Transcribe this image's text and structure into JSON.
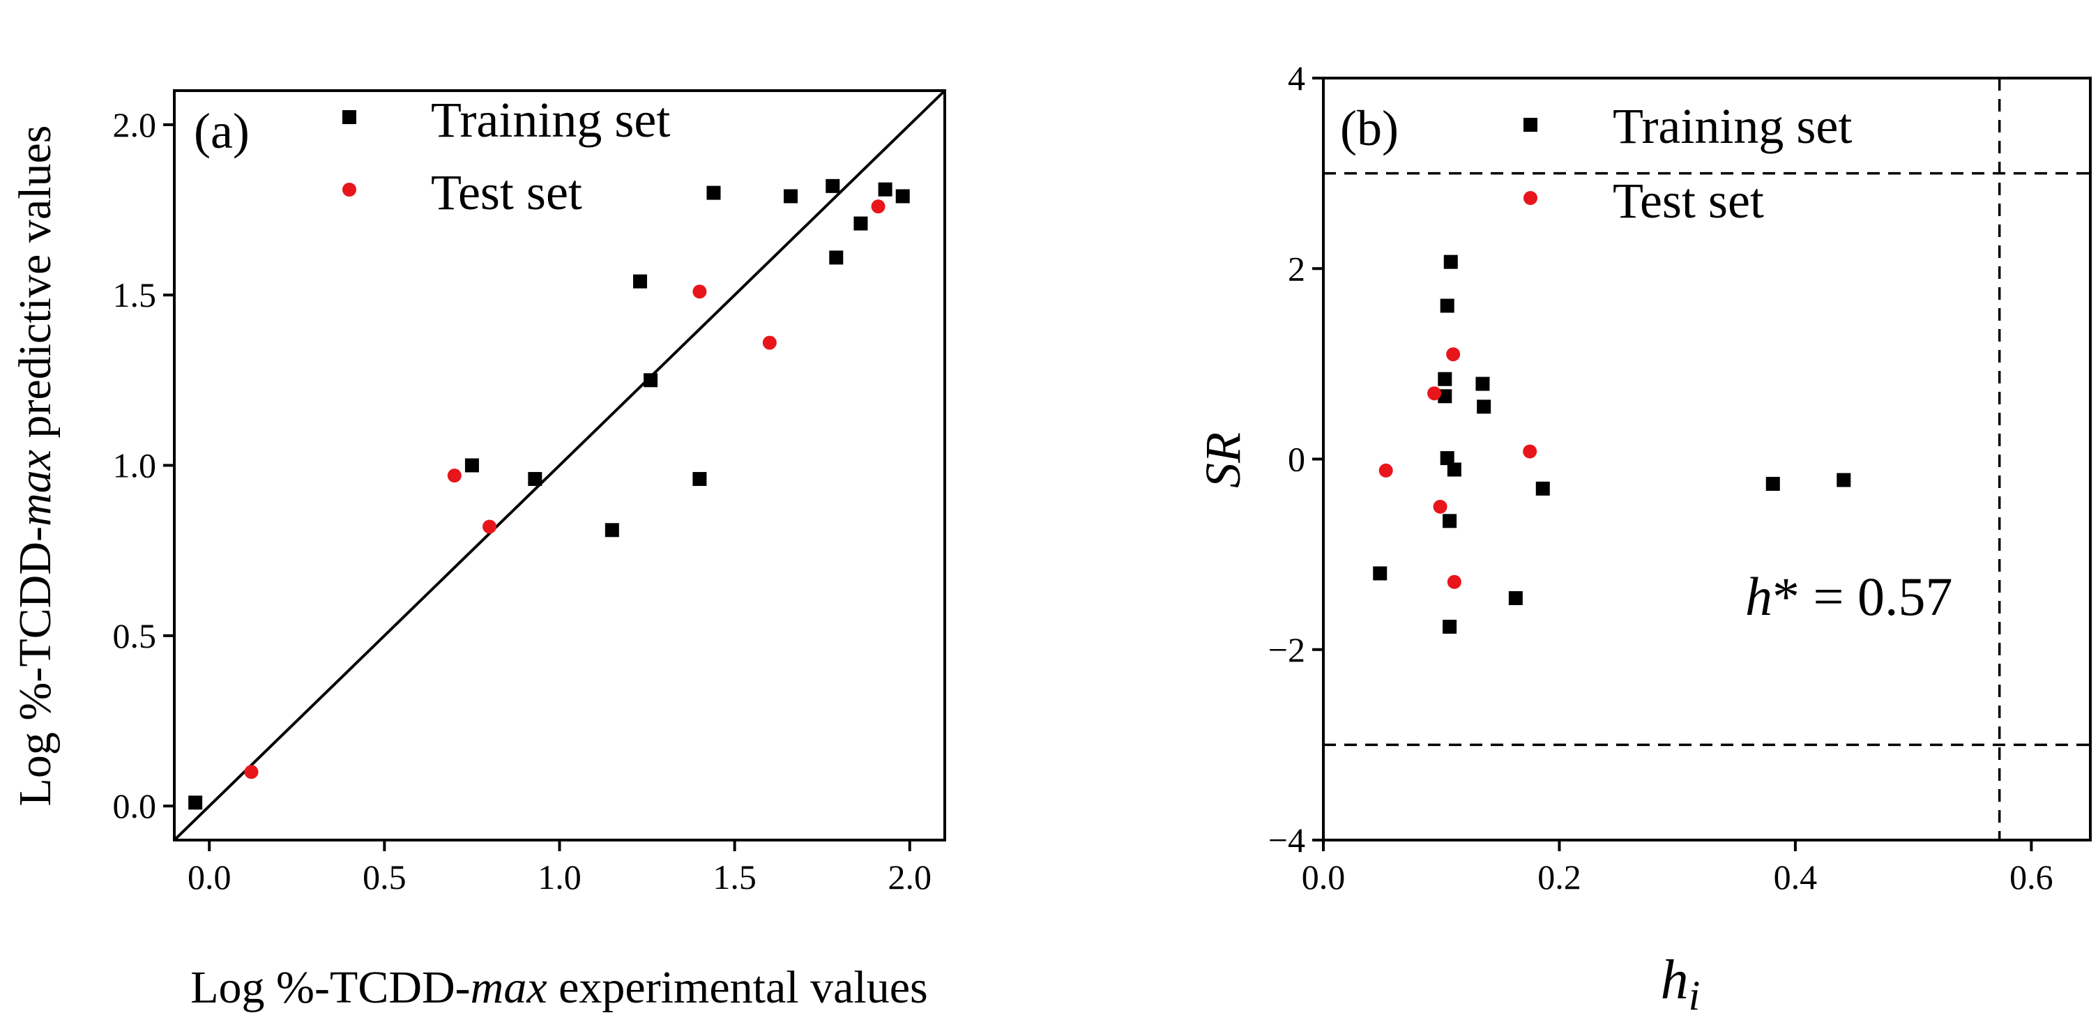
{
  "colors": {
    "training": "#000000",
    "test": "#e8161b",
    "axis": "#000000"
  },
  "chart_data": [
    {
      "type": "scatter",
      "panel_label": "(a)",
      "xlabel": {
        "pre": "Log %-TCDD-",
        "italic": "max",
        "post": " experimental values"
      },
      "ylabel": {
        "pre": "Log %-TCDD-",
        "italic": "max",
        "post": " predictive values"
      },
      "xlim": [
        -0.1,
        2.1
      ],
      "ylim": [
        -0.1,
        2.1
      ],
      "xticks": [
        {
          "value": 0.0,
          "label": "0.0"
        },
        {
          "value": 0.5,
          "label": "0.5"
        },
        {
          "value": 1.0,
          "label": "1.0"
        },
        {
          "value": 1.5,
          "label": "1.5"
        },
        {
          "value": 2.0,
          "label": "2.0"
        }
      ],
      "yticks": [
        {
          "value": 0.0,
          "label": "0.0"
        },
        {
          "value": 0.5,
          "label": "0.5"
        },
        {
          "value": 1.0,
          "label": "1.0"
        },
        {
          "value": 1.5,
          "label": "1.5"
        },
        {
          "value": 2.0,
          "label": "2.0"
        }
      ],
      "reference_line": "y = x",
      "legend": [
        "Training set",
        "Test set"
      ],
      "series": [
        {
          "name": "Training set",
          "marker": "square",
          "points": [
            [
              -0.04,
              0.01
            ],
            [
              0.75,
              1.0
            ],
            [
              0.93,
              0.96
            ],
            [
              1.15,
              0.81
            ],
            [
              1.23,
              1.54
            ],
            [
              1.26,
              1.25
            ],
            [
              1.4,
              0.96
            ],
            [
              1.44,
              1.8
            ],
            [
              1.66,
              1.79
            ],
            [
              1.78,
              1.82
            ],
            [
              1.79,
              1.61
            ],
            [
              1.86,
              1.71
            ],
            [
              1.93,
              1.81
            ],
            [
              1.98,
              1.79
            ]
          ]
        },
        {
          "name": "Test set",
          "marker": "circle",
          "points": [
            [
              0.12,
              0.1
            ],
            [
              0.7,
              0.97
            ],
            [
              0.8,
              0.82
            ],
            [
              1.4,
              1.51
            ],
            [
              1.6,
              1.36
            ],
            [
              1.91,
              1.76
            ]
          ]
        }
      ]
    },
    {
      "type": "scatter",
      "panel_label": "(b)",
      "xlabel": {
        "main": "h",
        "sub": "i"
      },
      "ylabel": {
        "main": "SR"
      },
      "xlim": [
        0.0,
        0.65
      ],
      "ylim": [
        -4,
        4
      ],
      "xticks": [
        {
          "value": 0.0,
          "label": "0.0"
        },
        {
          "value": 0.2,
          "label": "0.2"
        },
        {
          "value": 0.4,
          "label": "0.4"
        },
        {
          "value": 0.6,
          "label": "0.6"
        }
      ],
      "yticks": [
        {
          "value": -4,
          "label": "−4"
        },
        {
          "value": -2,
          "label": "−2"
        },
        {
          "value": 0,
          "label": "0"
        },
        {
          "value": 2,
          "label": "2"
        },
        {
          "value": 4,
          "label": "4"
        }
      ],
      "hlines": [
        3,
        -3
      ],
      "vline": 0.573,
      "annotation": {
        "main": "h",
        "rest": "* = 0.57"
      },
      "legend": [
        "Training set",
        "Test set"
      ],
      "series": [
        {
          "name": "Training set",
          "marker": "square",
          "points": [
            [
              0.108,
              2.07
            ],
            [
              0.105,
              1.61
            ],
            [
              0.103,
              0.84
            ],
            [
              0.103,
              0.66
            ],
            [
              0.135,
              0.79
            ],
            [
              0.136,
              0.55
            ],
            [
              0.105,
              0.01
            ],
            [
              0.111,
              -0.11
            ],
            [
              0.107,
              -0.65
            ],
            [
              0.186,
              -0.31
            ],
            [
              0.048,
              -1.2
            ],
            [
              0.163,
              -1.46
            ],
            [
              0.107,
              -1.76
            ],
            [
              0.381,
              -0.26
            ],
            [
              0.441,
              -0.22
            ]
          ]
        },
        {
          "name": "Test set",
          "marker": "circle",
          "points": [
            [
              0.11,
              1.1
            ],
            [
              0.094,
              0.69
            ],
            [
              0.175,
              0.08
            ],
            [
              0.053,
              -0.12
            ],
            [
              0.099,
              -0.5
            ],
            [
              0.111,
              -1.29
            ]
          ]
        }
      ]
    }
  ]
}
